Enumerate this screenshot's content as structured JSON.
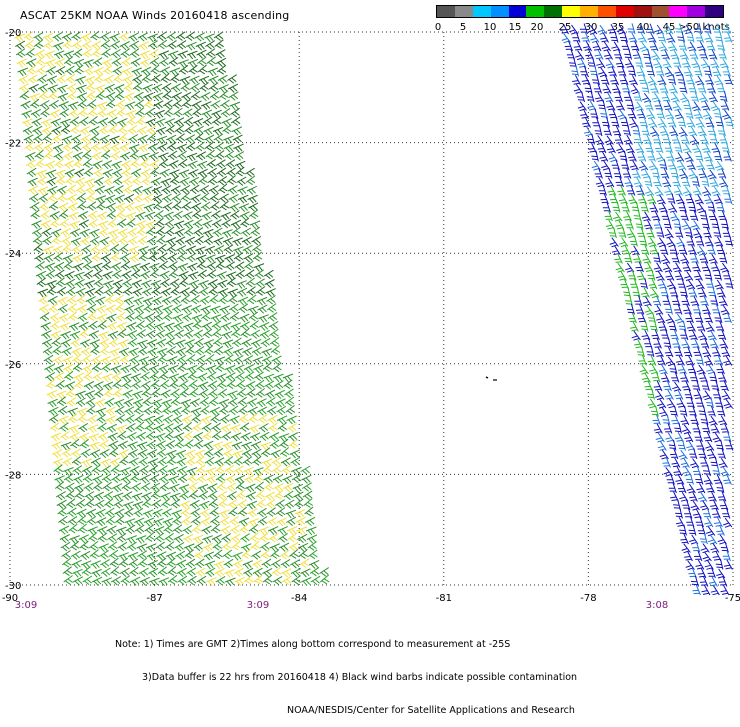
{
  "title": "ASCAT 25KM NOAA Winds 20160418 ascending",
  "legend": {
    "colors": [
      "#555555",
      "#8a8a8a",
      "#00c8ff",
      "#0090ff",
      "#0000d8",
      "#00c000",
      "#007000",
      "#ffff00",
      "#ffb000",
      "#ff5000",
      "#e00000",
      "#a01010",
      "#a05030",
      "#ff00ff",
      "#a000e0",
      "#300080"
    ],
    "labels": [
      "0",
      "5",
      "10",
      "15",
      "20",
      "25",
      "30",
      "35",
      "40",
      "45",
      ">50 knots"
    ]
  },
  "axes": {
    "latitudes": [
      "-20",
      "-22",
      "-24",
      "-26",
      "-28",
      "-30"
    ],
    "longitudes": [
      "-90",
      "-87",
      "-84",
      "-81",
      "-78",
      "-75"
    ],
    "lat_range": [
      -30,
      -20
    ],
    "lon_range": [
      -90,
      -75
    ]
  },
  "times": [
    "3:09",
    "3:09",
    "3:08"
  ],
  "notes": [
    "Note: 1) Times are GMT 2)Times along bottom correspond to measurement at -25S",
    "3)Data buffer is 22 hrs from 20160418 4) Black wind barbs indicate possible contamination",
    "NOAA/NESDIS/Center for Satellite Applications and Research"
  ],
  "swaths": [
    {
      "name": "west-swath",
      "dominant_colors": [
        "#1f7a1f",
        "#2aa02a",
        "#f0e040"
      ]
    },
    {
      "name": "east-swath",
      "dominant_colors": [
        "#1010c0",
        "#30a0e0",
        "#20b820"
      ]
    }
  ]
}
